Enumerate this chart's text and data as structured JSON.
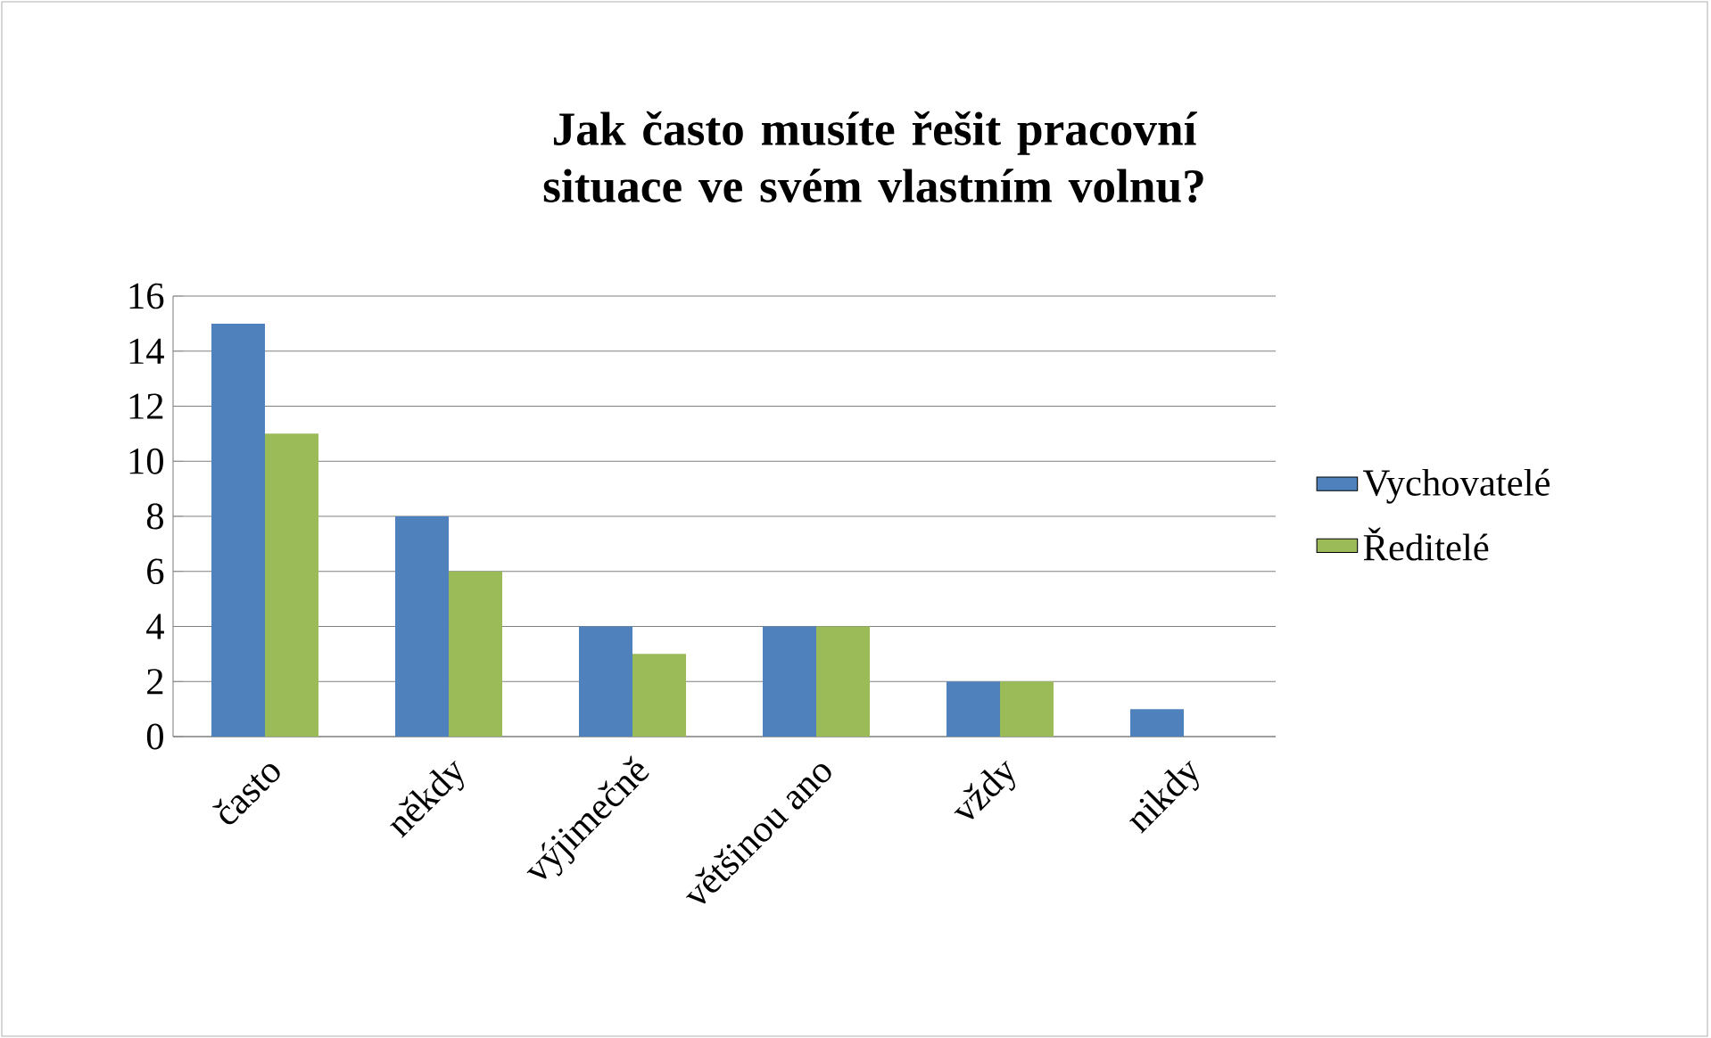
{
  "chart_data": {
    "type": "bar",
    "title": "Jak často musíte řešit pracovní situace ve svém vlastním volnu?",
    "categories": [
      "často",
      "někdy",
      "výjimečně",
      "většinou ano",
      "vždy",
      "nikdy"
    ],
    "series": [
      {
        "name": "Vychovatelé",
        "color": "#4f81bd",
        "values": [
          15,
          8,
          4,
          4,
          2,
          1
        ]
      },
      {
        "name": "Ředitelé",
        "color": "#9bbb59",
        "values": [
          11,
          6,
          3,
          4,
          2,
          0
        ]
      }
    ],
    "ylim": [
      0,
      16
    ],
    "yticks": [
      0,
      2,
      4,
      6,
      8,
      10,
      12,
      14,
      16
    ],
    "grid": "y",
    "legend": "right"
  }
}
